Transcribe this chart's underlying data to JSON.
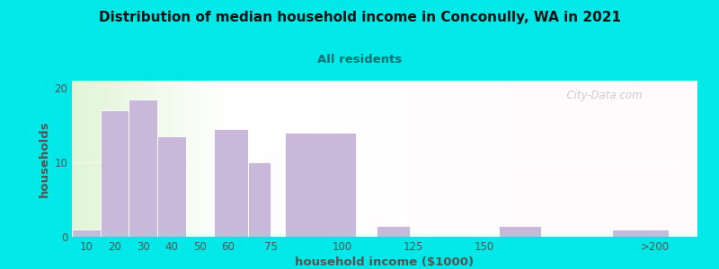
{
  "title": "Distribution of median household income in Conconully, WA in 2021",
  "subtitle": "All residents",
  "xlabel": "household income ($1000)",
  "ylabel": "households",
  "bar_color": "#c9b8d9",
  "background_outer": "#00e8e8",
  "title_color": "#111111",
  "subtitle_color": "#007070",
  "axis_label_color": "#555555",
  "tick_color": "#555555",
  "values": [
    1,
    17,
    18.5,
    13.5,
    0,
    14.5,
    10,
    14,
    1.5,
    0,
    1.5,
    1
  ],
  "bar_lefts": [
    5,
    15,
    25,
    35,
    45,
    55,
    67,
    80,
    112,
    137,
    155,
    195
  ],
  "bar_widths": [
    10,
    10,
    10,
    10,
    10,
    12,
    8,
    25,
    12,
    13,
    15,
    20
  ],
  "ylim": [
    0,
    21
  ],
  "xlim": [
    5,
    225
  ],
  "yticks": [
    0,
    10,
    20
  ],
  "xtick_positions": [
    10,
    20,
    30,
    40,
    50,
    60,
    75,
    100,
    125,
    150,
    210
  ],
  "xtick_labels": [
    "10",
    "20",
    "30",
    "40",
    "50",
    "60",
    "75",
    "100",
    "125",
    "150",
    ">200"
  ],
  "watermark": "  City-Data.com"
}
